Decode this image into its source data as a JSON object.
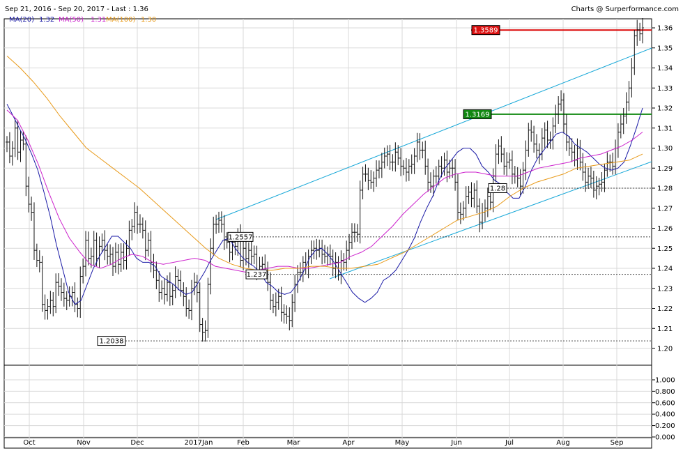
{
  "header": {
    "range_text": "Sep 21, 2016 - Sep 20, 2017 - Last : 1.36",
    "source_text": "Charts @ Surperformance.com",
    "ma_labels": [
      {
        "text": "MA(20)",
        "value": "1.32",
        "color": "#1a1aa6"
      },
      {
        "text": "MA(50)",
        "value": "1.31",
        "color": "#cc22cc"
      },
      {
        "text": "MA(100)",
        "value": "1.30",
        "color": "#e89a1a"
      }
    ]
  },
  "chart_data": [
    {
      "type": "line",
      "title": "",
      "x_axis": {
        "labels": [
          "Oct",
          "Nov",
          "Dec",
          "2017Jan",
          "Feb",
          "Mar",
          "Apr",
          "May",
          "Jun",
          "Jul",
          "Aug",
          "Sep"
        ]
      },
      "y_axis": {
        "ticks": [
          "1.36",
          "1.35",
          "1.34",
          "1.33",
          "1.32",
          "1.31",
          "1.30",
          "1.29",
          "1.28",
          "1.27",
          "1.26",
          "1.25",
          "1.24",
          "1.23",
          "1.22",
          "1.21",
          "1.20"
        ],
        "ylim": [
          1.191,
          1.363
        ],
        "grid": true
      },
      "price_bars_close": [
        1.303,
        1.296,
        1.3,
        1.31,
        1.298,
        1.304,
        1.302,
        1.281,
        1.272,
        1.268,
        1.249,
        1.244,
        1.243,
        1.222,
        1.219,
        1.221,
        1.224,
        1.221,
        1.233,
        1.231,
        1.228,
        1.225,
        1.224,
        1.226,
        1.228,
        1.222,
        1.22,
        1.236,
        1.241,
        1.254,
        1.245,
        1.246,
        1.254,
        1.245,
        1.251,
        1.254,
        1.249,
        1.246,
        1.247,
        1.241,
        1.248,
        1.242,
        1.248,
        1.244,
        1.25,
        1.259,
        1.261,
        1.268,
        1.262,
        1.262,
        1.259,
        1.249,
        1.254,
        1.243,
        1.239,
        1.234,
        1.228,
        1.23,
        1.227,
        1.233,
        1.226,
        1.229,
        1.236,
        1.234,
        1.229,
        1.226,
        1.22,
        1.219,
        1.23,
        1.233,
        1.228,
        1.212,
        1.208,
        1.209,
        1.232,
        1.25,
        1.262,
        1.262,
        1.264,
        1.262,
        1.254,
        1.253,
        1.248,
        1.253,
        1.251,
        1.257,
        1.244,
        1.25,
        1.245,
        1.249,
        1.246,
        1.247,
        1.239,
        1.241,
        1.242,
        1.24,
        1.233,
        1.224,
        1.221,
        1.223,
        1.226,
        1.218,
        1.217,
        1.216,
        1.214,
        1.223,
        1.232,
        1.238,
        1.238,
        1.243,
        1.24,
        1.246,
        1.249,
        1.25,
        1.249,
        1.25,
        1.247,
        1.246,
        1.247,
        1.246,
        1.24,
        1.243,
        1.237,
        1.244,
        1.243,
        1.249,
        1.253,
        1.258,
        1.258,
        1.257,
        1.279,
        1.287,
        1.287,
        1.284,
        1.283,
        1.285,
        1.289,
        1.29,
        1.293,
        1.296,
        1.297,
        1.293,
        1.293,
        1.298,
        1.295,
        1.291,
        1.29,
        1.288,
        1.291,
        1.292,
        1.296,
        1.303,
        1.299,
        1.299,
        1.291,
        1.283,
        1.281,
        1.286,
        1.286,
        1.291,
        1.29,
        1.294,
        1.288,
        1.29,
        1.29,
        1.283,
        1.268,
        1.267,
        1.27,
        1.276,
        1.278,
        1.275,
        1.279,
        1.271,
        1.263,
        1.268,
        1.27,
        1.276,
        1.273,
        1.286,
        1.297,
        1.301,
        1.297,
        1.291,
        1.293,
        1.294,
        1.287,
        1.286,
        1.285,
        1.281,
        1.289,
        1.299,
        1.309,
        1.308,
        1.302,
        1.299,
        1.297,
        1.305,
        1.309,
        1.304,
        1.304,
        1.311,
        1.317,
        1.322,
        1.324,
        1.312,
        1.303,
        1.3,
        1.298,
        1.294,
        1.3,
        1.293,
        1.288,
        1.283,
        1.286,
        1.285,
        1.279,
        1.281,
        1.282,
        1.283,
        1.289,
        1.293,
        1.293,
        1.291,
        1.3,
        1.308,
        1.312,
        1.316,
        1.323,
        1.33,
        1.34,
        1.356,
        1.359,
        1.357,
        1.36
      ],
      "series": [
        {
          "name": "MA(20)",
          "color": "#1a1aa6",
          "values": [
            1.322,
            1.316,
            1.31,
            1.304,
            1.297,
            1.289,
            1.278,
            1.266,
            1.252,
            1.24,
            1.228,
            1.222,
            1.224,
            1.232,
            1.24,
            1.246,
            1.251,
            1.256,
            1.256,
            1.253,
            1.25,
            1.245,
            1.243,
            1.243,
            1.241,
            1.236,
            1.234,
            1.232,
            1.229,
            1.227,
            1.228,
            1.233,
            1.238,
            1.244,
            1.249,
            1.254,
            1.255,
            1.25,
            1.246,
            1.243,
            1.241,
            1.238,
            1.233,
            1.231,
            1.228,
            1.227,
            1.228,
            1.232,
            1.238,
            1.245,
            1.249,
            1.25,
            1.247,
            1.243,
            1.238,
            1.233,
            1.228,
            1.225,
            1.223,
            1.225,
            1.228,
            1.234,
            1.236,
            1.239,
            1.244,
            1.249,
            1.255,
            1.263,
            1.27,
            1.276,
            1.284,
            1.29,
            1.294,
            1.298,
            1.3,
            1.3,
            1.297,
            1.291,
            1.288,
            1.284,
            1.282,
            1.278,
            1.275,
            1.275,
            1.281,
            1.289,
            1.295,
            1.299,
            1.303,
            1.307,
            1.308,
            1.306,
            1.302,
            1.3,
            1.298,
            1.295,
            1.292,
            1.29,
            1.289,
            1.29,
            1.293,
            1.301,
            1.31,
            1.32
          ]
        },
        {
          "name": "MA(50)",
          "color": "#cc22cc",
          "values": [
            1.319,
            1.314,
            1.304,
            1.292,
            1.278,
            1.265,
            1.255,
            1.248,
            1.242,
            1.24,
            1.242,
            1.245,
            1.247,
            1.246,
            1.243,
            1.242,
            1.243,
            1.244,
            1.245,
            1.244,
            1.241,
            1.24,
            1.239,
            1.238,
            1.239,
            1.24,
            1.241,
            1.241,
            1.24,
            1.24,
            1.241,
            1.242,
            1.243,
            1.246,
            1.248,
            1.251,
            1.256,
            1.261,
            1.267,
            1.272,
            1.277,
            1.281,
            1.285,
            1.287,
            1.288,
            1.288,
            1.287,
            1.286,
            1.286,
            1.286,
            1.288,
            1.29,
            1.291,
            1.292,
            1.293,
            1.295,
            1.296,
            1.297,
            1.299,
            1.301,
            1.304,
            1.308
          ]
        },
        {
          "name": "MA(100)",
          "color": "#e89a1a",
          "values": [
            1.346,
            1.34,
            1.333,
            1.325,
            1.316,
            1.308,
            1.3,
            1.295,
            1.29,
            1.285,
            1.28,
            1.274,
            1.268,
            1.262,
            1.256,
            1.25,
            1.245,
            1.242,
            1.24,
            1.239,
            1.239,
            1.24,
            1.24,
            1.241,
            1.241,
            1.24,
            1.24,
            1.241,
            1.242,
            1.245,
            1.248,
            1.252,
            1.256,
            1.26,
            1.264,
            1.266,
            1.268,
            1.271,
            1.276,
            1.28,
            1.283,
            1.285,
            1.287,
            1.29,
            1.291,
            1.292,
            1.293,
            1.294,
            1.297
          ]
        }
      ],
      "annotations": [
        {
          "label": "1.3589",
          "kind": "resistance",
          "color": "#dd1111"
        },
        {
          "label": "1.3169",
          "kind": "support",
          "color": "#118811"
        },
        {
          "label": "1.28",
          "kind": "level"
        },
        {
          "label": "1.2557",
          "kind": "level"
        },
        {
          "label": "1.237",
          "kind": "level"
        },
        {
          "label": "1.2038",
          "kind": "level"
        }
      ]
    },
    {
      "type": "bar",
      "title": "",
      "y_axis": {
        "ticks": [
          "1.000",
          "0.800",
          "0.600",
          "0.400",
          "0.200",
          "0.000"
        ],
        "ylim": [
          0,
          1
        ]
      },
      "values": []
    }
  ]
}
